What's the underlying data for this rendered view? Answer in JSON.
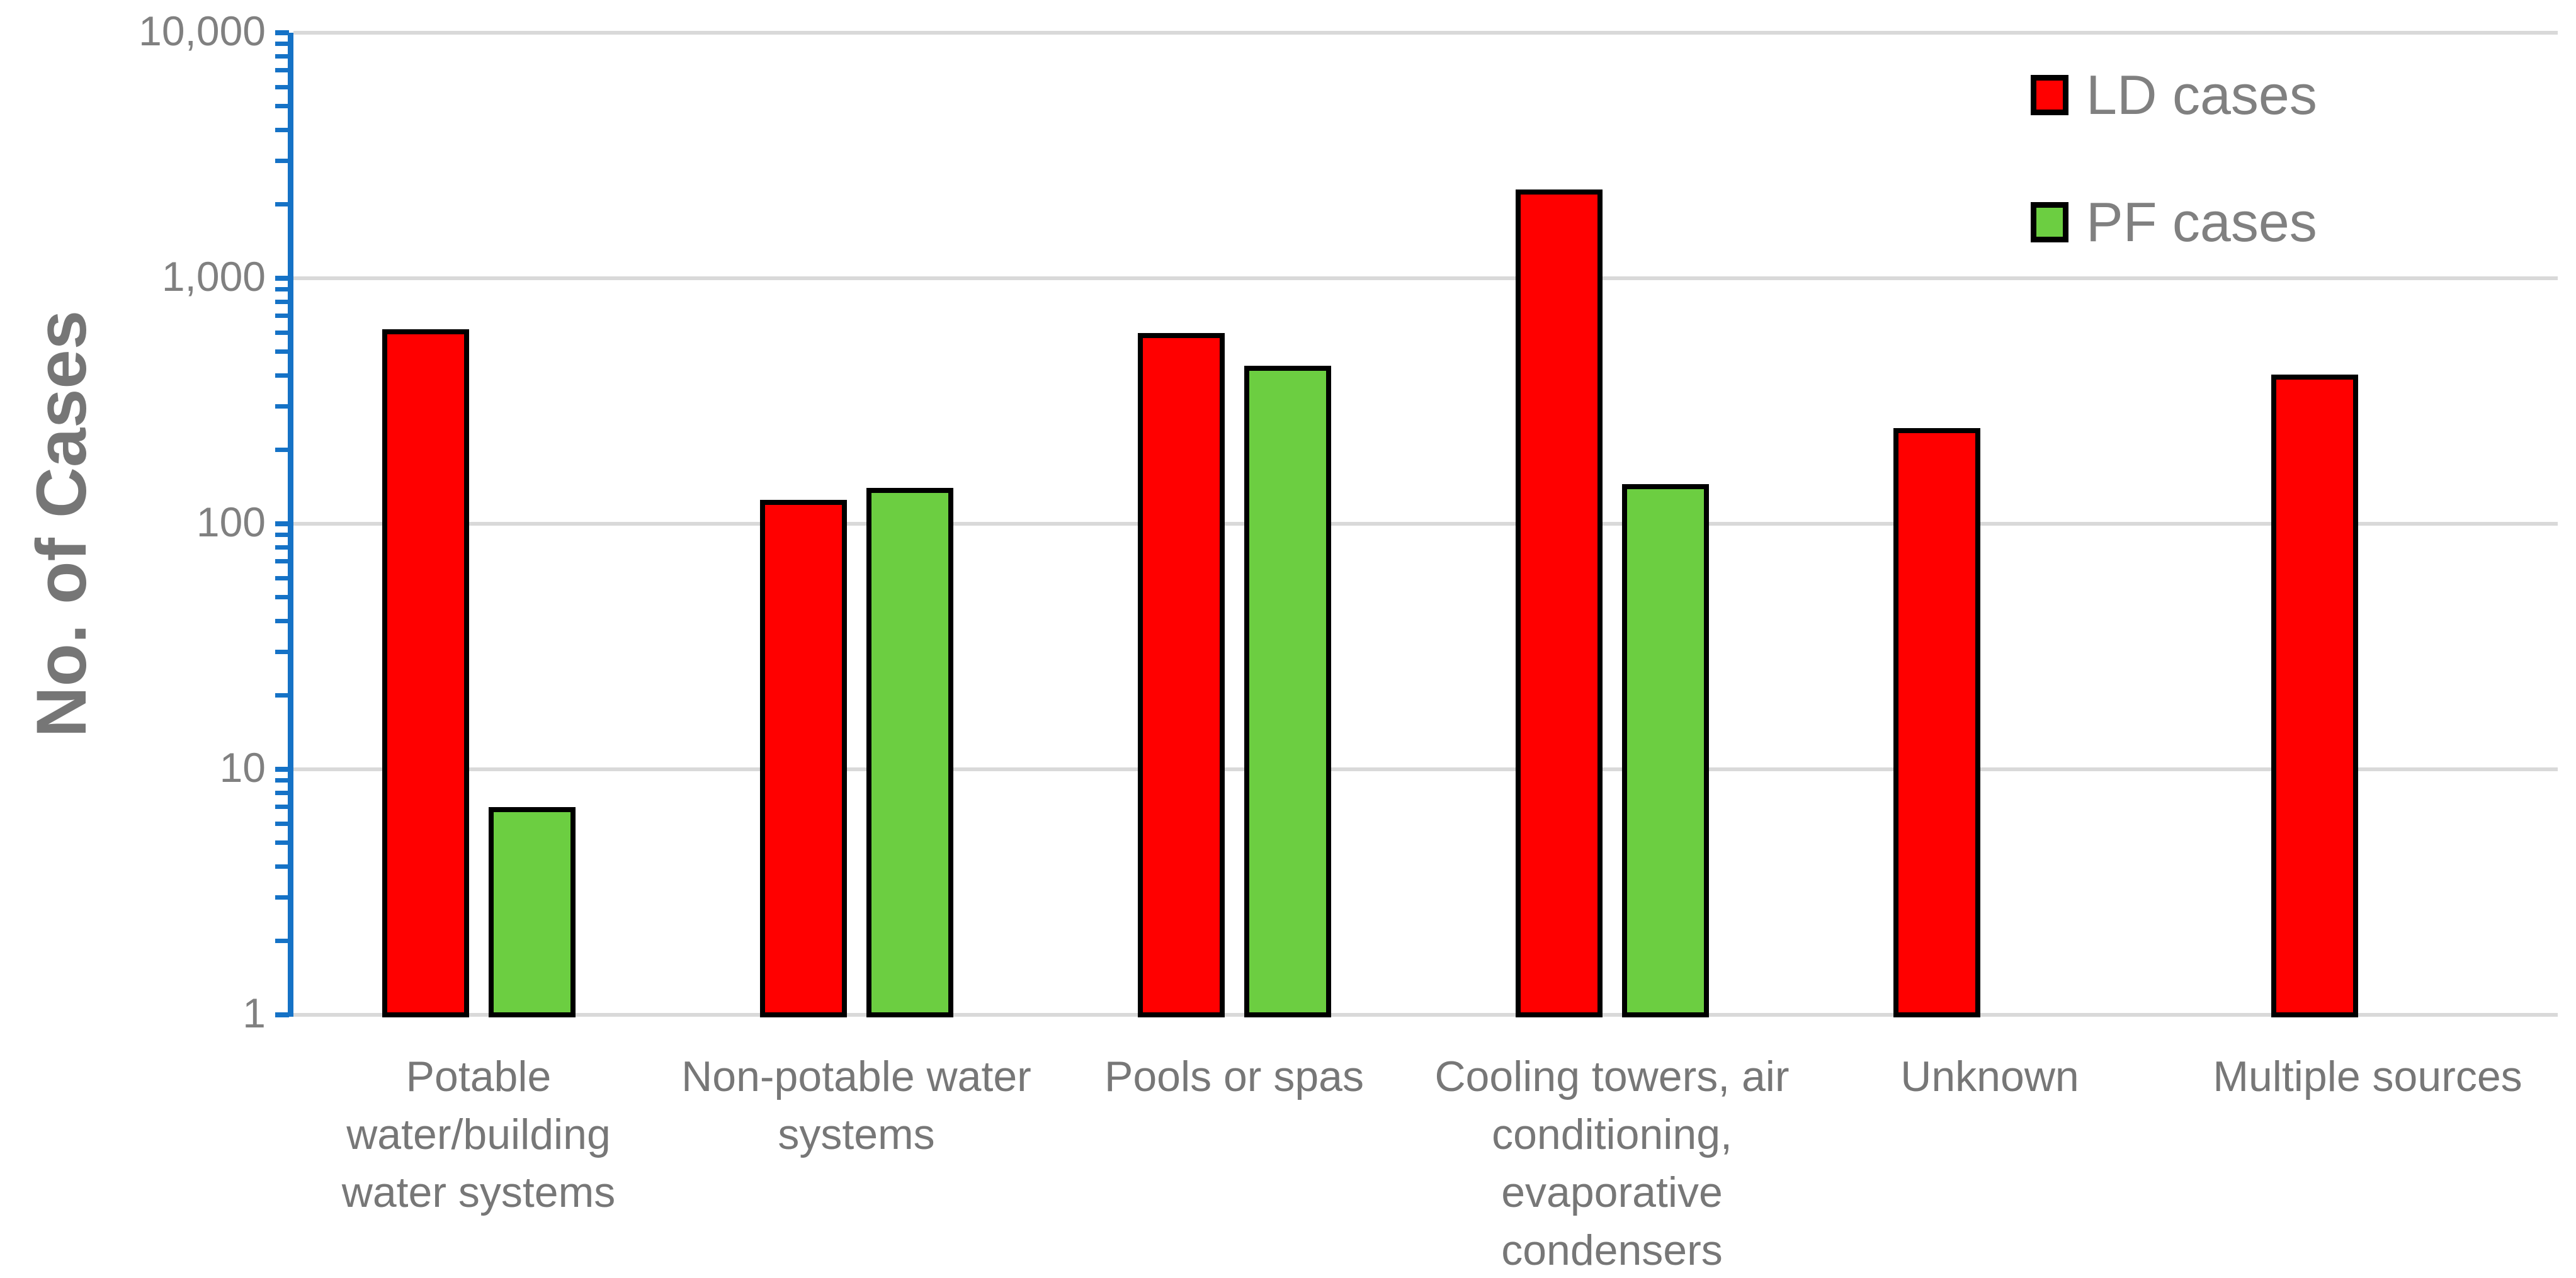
{
  "y_axis": {
    "title": "No. of Cases"
  },
  "legend": {
    "items": [
      {
        "label": "LD cases",
        "color": "#FF0000"
      },
      {
        "label": "PF cases",
        "color": "#6CCE41"
      }
    ]
  },
  "chart_data": {
    "type": "bar",
    "title": "",
    "xlabel": "",
    "ylabel": "No. of Cases",
    "y_scale": "log10",
    "ylim": [
      1,
      10000
    ],
    "y_ticks": [
      1,
      10,
      100,
      1000,
      10000
    ],
    "y_tick_labels": [
      "1",
      "10",
      "100",
      "1,000",
      "10,000"
    ],
    "grid": "horizontal-major-gridlines",
    "legend_position": "top-right",
    "categories": [
      "Potable water/building water systems",
      "Non-potable water systems",
      "Pools or spas",
      "Cooling towers, air conditioning, evaporative condensers",
      "Unknown",
      "Multiple sources"
    ],
    "category_lines": [
      [
        "Potable",
        "water/building",
        "water systems"
      ],
      [
        "Non-potable water",
        "systems"
      ],
      [
        "Pools or spas"
      ],
      [
        "Cooling towers, air",
        "conditioning,",
        "evaporative",
        "condensers"
      ],
      [
        "Unknown"
      ],
      [
        "Multiple sources"
      ]
    ],
    "series": [
      {
        "name": "LD cases",
        "color": "#FF0000",
        "values": [
          620,
          125,
          600,
          2300,
          245,
          405
        ]
      },
      {
        "name": "PF cases",
        "color": "#6CCE41",
        "values": [
          7,
          140,
          440,
          145,
          null,
          null
        ]
      }
    ],
    "colors": {
      "axis": "#1572C6",
      "gridline": "#D9D9D9",
      "tick_text": "#808080",
      "category_text": "#777777",
      "axis_title_text": "#767676",
      "bar_border": "#000000"
    }
  }
}
